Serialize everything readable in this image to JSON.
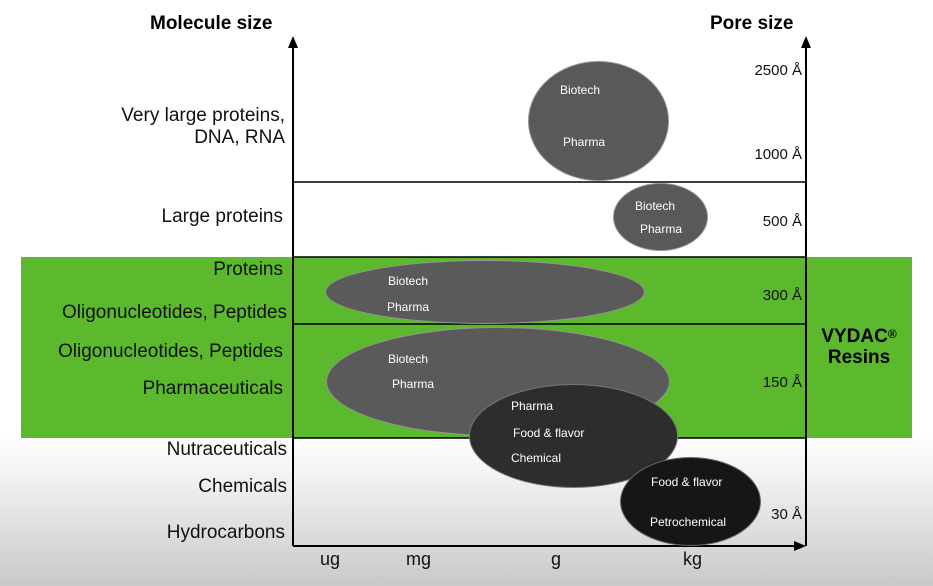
{
  "headers": {
    "left": "Molecule size",
    "right": "Pore size"
  },
  "molecule_labels": {
    "very_large_1": "Very large proteins,",
    "very_large_2": "DNA, RNA",
    "large_proteins": "Large proteins",
    "proteins": "Proteins",
    "oligo_1": "Oligonucleotides, Peptides",
    "oligo_2": "Oligonucleotides, Peptides",
    "pharmaceuticals": "Pharmaceuticals",
    "nutraceuticals": "Nutraceuticals",
    "chemicals": "Chemicals",
    "hydrocarbons": "Hydrocarbons"
  },
  "pore_sizes": {
    "p2500": "2500 Å",
    "p1000": "1000 Å",
    "p500": "500 Å",
    "p300": "300 Å",
    "p150": "150 Å",
    "p30": "30 Å"
  },
  "x_axis": {
    "ug": "ug",
    "mg": "mg",
    "g": "g",
    "kg": "kg"
  },
  "blobs": {
    "b1": {
      "line1": "Biotech",
      "line2": "Pharma"
    },
    "b2": {
      "line1": "Biotech",
      "line2": "Pharma"
    },
    "b3": {
      "line1": "Biotech",
      "line2": "Pharma"
    },
    "b4": {
      "line1": "Biotech",
      "line2": "Pharma"
    },
    "b5": {
      "line1": "Pharma",
      "line2": "Food & flavor",
      "line3": "Chemical"
    },
    "b6": {
      "line1": "Food & flavor",
      "line2": "Petrochemical"
    }
  },
  "vydac": {
    "name": "VYDAC",
    "reg": "®",
    "line2": "Resins"
  },
  "colors": {
    "green_band": "#5cb82c",
    "blob_mid": "#5a5a5a",
    "blob_dark": "#2c2c2c",
    "blob_black": "#161616"
  }
}
